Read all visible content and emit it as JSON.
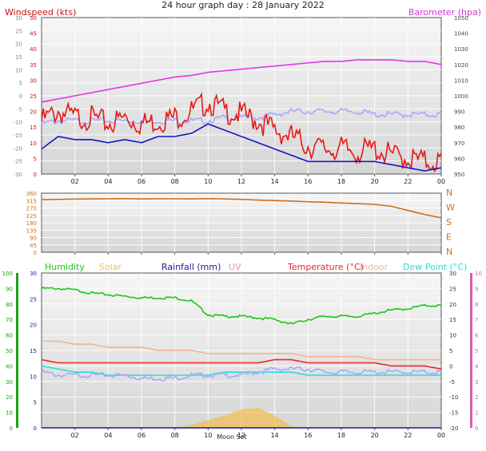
{
  "title": "24 hour graph day : 28 January 2022",
  "colors": {
    "wind": "#e61919",
    "gust_avg": "#1414c8",
    "baro": "#e633e6",
    "dir": "#cd6e19",
    "humidity": "#19c819",
    "solar": "#f0c05a",
    "rain": "#191996",
    "uv": "#f08cc8",
    "temp": "#e62828",
    "indoor": "#f0b48c",
    "dew": "#28dcdc",
    "minor_series": "#a8a8ff"
  },
  "chart_data": [
    {
      "type": "line",
      "panel": "wind",
      "left_title": "Windspeed (kts)",
      "right_title": "Barometer (hpa)",
      "x_ticks": [
        "02",
        "04",
        "06",
        "08",
        "10",
        "12",
        "14",
        "16",
        "18",
        "20",
        "22",
        "00"
      ],
      "left_axis_outer": {
        "ticks": [
          "30",
          "25",
          "20",
          "15",
          "10",
          "5",
          "0",
          "-5",
          "-10",
          "-15",
          "-20",
          "-25",
          "-30"
        ],
        "ylim": [
          -30,
          30
        ]
      },
      "left_axis_inner": {
        "ticks": [
          "50",
          "45",
          "40",
          "35",
          "30",
          "25",
          "20",
          "15",
          "10",
          "5",
          "0"
        ],
        "ylim": [
          0,
          50
        ]
      },
      "right_axis": {
        "ticks": [
          "1050",
          "1040",
          "1030",
          "1020",
          "1010",
          "1000",
          "990",
          "980",
          "970",
          "960",
          "950"
        ],
        "ylim": [
          950,
          1050
        ]
      },
      "x": [
        0,
        1,
        2,
        3,
        4,
        5,
        6,
        7,
        8,
        9,
        10,
        11,
        12,
        13,
        14,
        15,
        16,
        17,
        18,
        19,
        20,
        21,
        22,
        23,
        24
      ],
      "series": [
        {
          "name": "Barometer (hpa)",
          "axis": "right",
          "color": "baro",
          "values": [
            996,
            998,
            1000,
            1002,
            1004,
            1006,
            1008,
            1010,
            1012,
            1013,
            1015,
            1016,
            1017,
            1018,
            1019,
            1020,
            1021,
            1022,
            1022,
            1023,
            1023,
            1023,
            1022,
            1022,
            1020
          ]
        },
        {
          "axis": "inner",
          "color": "minor_series",
          "values": [
            16,
            17,
            17,
            17,
            17,
            17,
            17,
            17,
            17,
            17,
            17,
            18,
            18,
            18,
            19,
            20,
            20,
            20,
            20,
            20,
            19,
            19,
            19,
            19,
            19
          ]
        },
        {
          "name": "Windspeed (kts)",
          "axis": "inner",
          "color": "wind",
          "values": [
            17,
            20,
            18,
            18,
            16,
            18,
            16,
            17,
            18,
            20,
            23,
            20,
            19,
            17,
            14,
            12,
            9,
            8,
            8,
            7,
            8,
            6,
            5,
            4,
            4
          ]
        },
        {
          "axis": "inner",
          "color": "gust_avg",
          "values": [
            8,
            12,
            11,
            11,
            10,
            11,
            10,
            12,
            12,
            13,
            16,
            14,
            12,
            10,
            8,
            6,
            4,
            4,
            4,
            4,
            4,
            3,
            2,
            1,
            2
          ]
        }
      ]
    },
    {
      "type": "line",
      "panel": "direction",
      "left_axis": {
        "ticks": [
          "360",
          "315",
          "270",
          "225",
          "180",
          "135",
          "90",
          "45",
          "0"
        ],
        "ylim": [
          0,
          360
        ]
      },
      "right_axis": {
        "ticks": [
          "N",
          "W",
          "S",
          "E",
          "N"
        ]
      },
      "x_ticks": [],
      "x": [
        0,
        1,
        2,
        3,
        4,
        5,
        6,
        7,
        8,
        9,
        10,
        11,
        12,
        13,
        14,
        15,
        16,
        17,
        18,
        19,
        20,
        21,
        22,
        23,
        24
      ],
      "series": [
        {
          "axis": "left",
          "color": "dir",
          "values": [
            320,
            322,
            324,
            325,
            326,
            327,
            325,
            326,
            326,
            325,
            327,
            325,
            322,
            318,
            315,
            312,
            308,
            305,
            300,
            296,
            292,
            280,
            255,
            230,
            210
          ]
        }
      ]
    },
    {
      "type": "line",
      "panel": "multi",
      "legend": [
        "Humidity",
        "Solar",
        "Rainfall (mm)",
        "UV",
        "Temperature (°C)",
        "Indoor",
        "Dew Point (°C)"
      ],
      "left_axis_outer": {
        "ticks": [
          "100",
          "90",
          "80",
          "70",
          "60",
          "50",
          "40",
          "30",
          "20",
          "10",
          "0"
        ],
        "ylim": [
          0,
          100
        ]
      },
      "left_axis_inner": {
        "ticks": [
          "30",
          "25",
          "20",
          "15",
          "10",
          "5",
          "0"
        ],
        "ylim": [
          0,
          30
        ]
      },
      "right_axis_temp": {
        "ticks": [
          "30",
          "25",
          "20",
          "15",
          "10",
          "5",
          "0",
          "-5",
          "-10",
          "-15",
          "-20"
        ],
        "ylim": [
          -20,
          30
        ]
      },
      "right_axis_uv": {
        "ticks": [
          "10",
          "9",
          "8",
          "7",
          "6",
          "5",
          "4",
          "3",
          "2",
          "1",
          "0"
        ],
        "ylim": [
          0,
          10
        ]
      },
      "x_ticks": [
        "02",
        "04",
        "06",
        "08",
        "10",
        "12",
        "14",
        "16",
        "18",
        "20",
        "22",
        "00"
      ],
      "moon_set_label": "Moon Set",
      "x": [
        0,
        1,
        2,
        3,
        4,
        5,
        6,
        7,
        8,
        9,
        10,
        11,
        12,
        13,
        14,
        15,
        16,
        17,
        18,
        19,
        20,
        21,
        22,
        23,
        24
      ],
      "series": [
        {
          "name": "Humidity",
          "axis": "left_outer",
          "color": "humidity",
          "values": [
            90,
            90,
            89,
            87,
            86,
            85,
            84,
            84,
            84,
            82,
            73,
            72,
            72,
            71,
            70,
            67,
            70,
            72,
            72,
            72,
            74,
            76,
            77,
            79,
            79
          ]
        },
        {
          "name": "Indoor",
          "axis": "right_temp",
          "color": "indoor",
          "values": [
            8,
            8,
            7,
            7,
            6,
            6,
            6,
            5,
            5,
            5,
            4,
            4,
            4,
            4,
            4,
            4,
            3,
            3,
            3,
            3,
            2,
            2,
            2,
            2,
            2
          ]
        },
        {
          "name": "Temperature (°C)",
          "axis": "right_temp",
          "color": "temp",
          "values": [
            2,
            1,
            1,
            1,
            1,
            1,
            1,
            1,
            1,
            1,
            1,
            1,
            1,
            1,
            2,
            2,
            1,
            1,
            1,
            1,
            1,
            0,
            0,
            0,
            -1
          ]
        },
        {
          "name": "Dew Point (°C)",
          "axis": "right_temp",
          "color": "dew",
          "values": [
            0,
            -1,
            -2,
            -2,
            -3,
            -3,
            -3,
            -3,
            -3,
            -3,
            -3,
            -2,
            -2,
            -2,
            -2,
            -2,
            -3,
            -3,
            -3,
            -3,
            -3,
            -3,
            -3,
            -3,
            -3
          ]
        },
        {
          "axis": "right_temp",
          "color": "minor_series",
          "values": [
            -2,
            -3,
            -3,
            -3,
            -3,
            -3,
            -4,
            -4,
            -4,
            -3,
            -3,
            -3,
            -3,
            -2,
            -1,
            -1,
            -1,
            -2,
            -2,
            -2,
            -2,
            -2,
            -2,
            -2,
            -2
          ]
        },
        {
          "name": "Solar",
          "axis": "left_outer",
          "color": "solar",
          "kind": "area",
          "values": [
            0,
            0,
            0,
            0,
            0,
            0,
            0,
            0,
            0,
            2,
            5,
            8,
            12,
            13,
            8,
            1,
            0,
            0,
            0,
            0,
            0,
            0,
            0,
            0,
            0
          ]
        },
        {
          "name": "Rainfall (mm)",
          "axis": "left_inner",
          "color": "rain",
          "values": [
            0,
            0,
            0,
            0,
            0,
            0,
            0,
            0,
            0,
            0,
            0,
            0,
            0,
            0,
            0,
            0,
            0,
            0,
            0,
            0,
            0,
            0,
            0,
            0,
            0
          ]
        }
      ]
    }
  ]
}
